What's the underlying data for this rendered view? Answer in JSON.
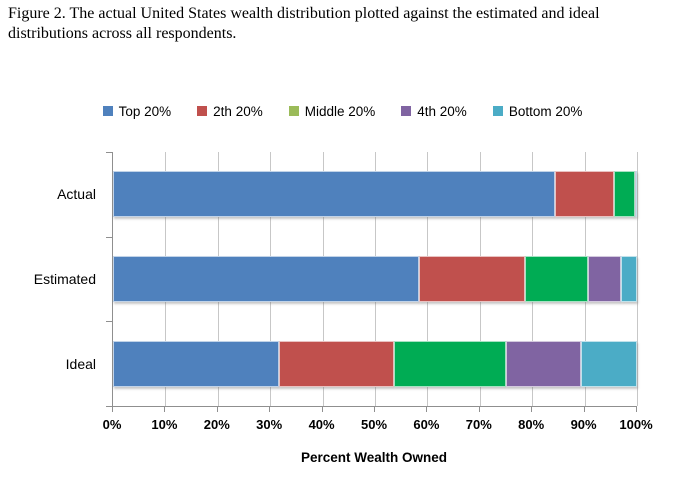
{
  "caption": "Figure 2. The actual United States wealth distribution plotted against the estimated and ideal distributions across all respondents.",
  "chart_data": {
    "type": "bar",
    "orientation": "horizontal",
    "stacked": true,
    "title": "",
    "xlabel": "Percent Wealth Owned",
    "ylabel": "",
    "xlim": [
      0,
      100
    ],
    "grid": true,
    "legend_position": "top",
    "categories": [
      "Actual",
      "Estimated",
      "Ideal"
    ],
    "x_ticks": [
      "0%",
      "10%",
      "20%",
      "30%",
      "40%",
      "50%",
      "60%",
      "70%",
      "80%",
      "90%",
      "100%"
    ],
    "series": [
      {
        "name": "Top 20%",
        "color": "#4F81BD",
        "legend_color": "#4F81BD",
        "values": [
          84.4,
          58.4,
          31.6
        ]
      },
      {
        "name": "2th 20%",
        "color": "#C0504D",
        "legend_color": "#C0504D",
        "values": [
          11.3,
          20.2,
          22.1
        ]
      },
      {
        "name": "Middle 20%",
        "color": "#00AC54",
        "legend_color": "#9BBB59",
        "values": [
          4.0,
          12.1,
          21.3
        ]
      },
      {
        "name": "4th 20%",
        "color": "#8064A2",
        "legend_color": "#8064A2",
        "values": [
          0.2,
          6.2,
          14.3
        ]
      },
      {
        "name": "Bottom 20%",
        "color": "#4BACC6",
        "legend_color": "#4BACC6",
        "values": [
          0.1,
          3.1,
          10.7
        ]
      }
    ]
  },
  "colors": {
    "gridline": "#c7c7c7",
    "axis": "#8f8f8f",
    "background": "#ffffff"
  }
}
